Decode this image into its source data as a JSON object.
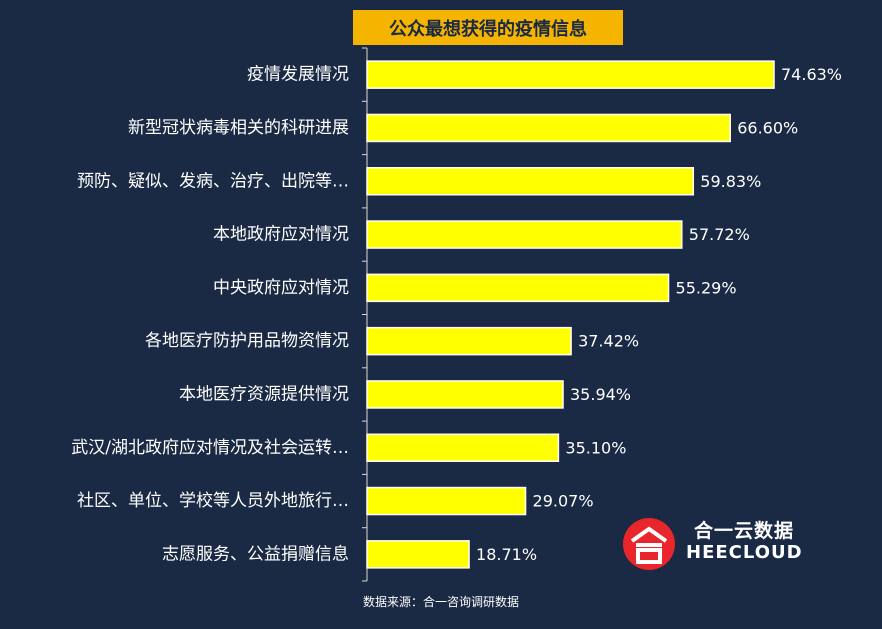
{
  "chart_data": {
    "type": "bar",
    "orientation": "horizontal",
    "title": "公众最想获得的疫情信息",
    "categories": [
      "疫情发展情况",
      "新型冠状病毒相关的科研进展",
      "预防、疑似、发病、治疗、出院等…",
      "本地政府应对情况",
      "中央政府应对情况",
      "各地医疗防护用品物资情况",
      "本地医疗资源提供情况",
      "武汉/湖北政府应对情况及社会运转…",
      "社区、单位、学校等人员外地旅行…",
      "志愿服务、公益捐赠信息"
    ],
    "values": [
      74.63,
      66.6,
      59.83,
      57.72,
      55.29,
      37.42,
      35.94,
      35.1,
      29.07,
      18.71
    ],
    "value_labels": [
      "74.63%",
      "66.60%",
      "59.83%",
      "57.72%",
      "55.29%",
      "37.42%",
      "35.94%",
      "35.10%",
      "29.07%",
      "18.71%"
    ],
    "xlim": [
      0,
      80
    ],
    "grid": false,
    "bar_color": "#ffff00",
    "bar_border_color": "#ffffff"
  },
  "source_note": "数据来源：合一咨询调研数据",
  "logo": {
    "cn_text": "合一云数据",
    "en_text": "HEECLOUD",
    "mark_color": "#e8262b"
  },
  "colors": {
    "background": "#1a2a44",
    "title_bg": "#f5b400",
    "text": "#ffffff"
  }
}
